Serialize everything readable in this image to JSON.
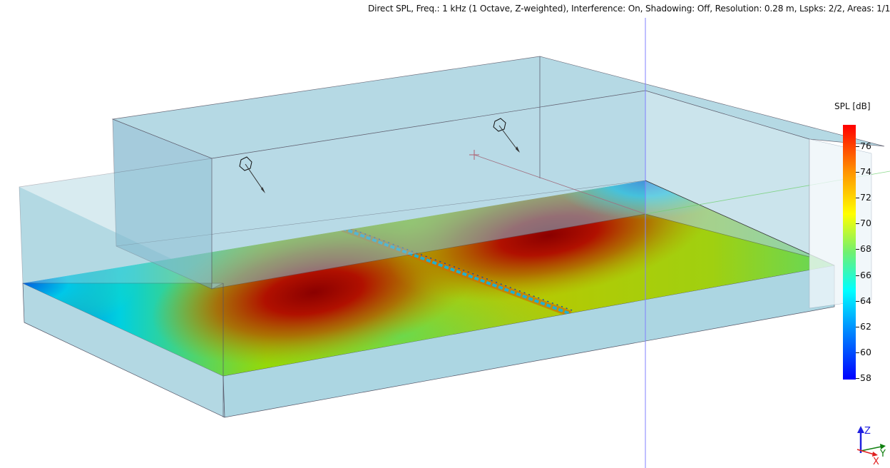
{
  "status_bar": {
    "text": "Direct SPL, Freq.: 1 kHz (1 Octave, Z-weighted), Interference: On, Shadowing: Off, Resolution: 0.28 m, Lspks: 2/2, Areas: 1/1"
  },
  "colorbar": {
    "title": "SPL [dB]",
    "min": 58,
    "max": 78,
    "ticks": [
      "76",
      "74",
      "72",
      "70",
      "68",
      "66",
      "64",
      "62",
      "60",
      "58"
    ],
    "colors": [
      "#0000ff",
      "#0090ff",
      "#00ffff",
      "#70f070",
      "#ffff00",
      "#ff9000",
      "#ff0000"
    ]
  },
  "loudspeakers": [
    {
      "name": "loudspeaker-1"
    },
    {
      "name": "loudspeaker-2"
    }
  ],
  "axis_triad": {
    "x": "X",
    "y": "Y",
    "z": "Z",
    "x_color": "#e02020",
    "y_color": "#108010",
    "z_color": "#2020e0"
  }
}
